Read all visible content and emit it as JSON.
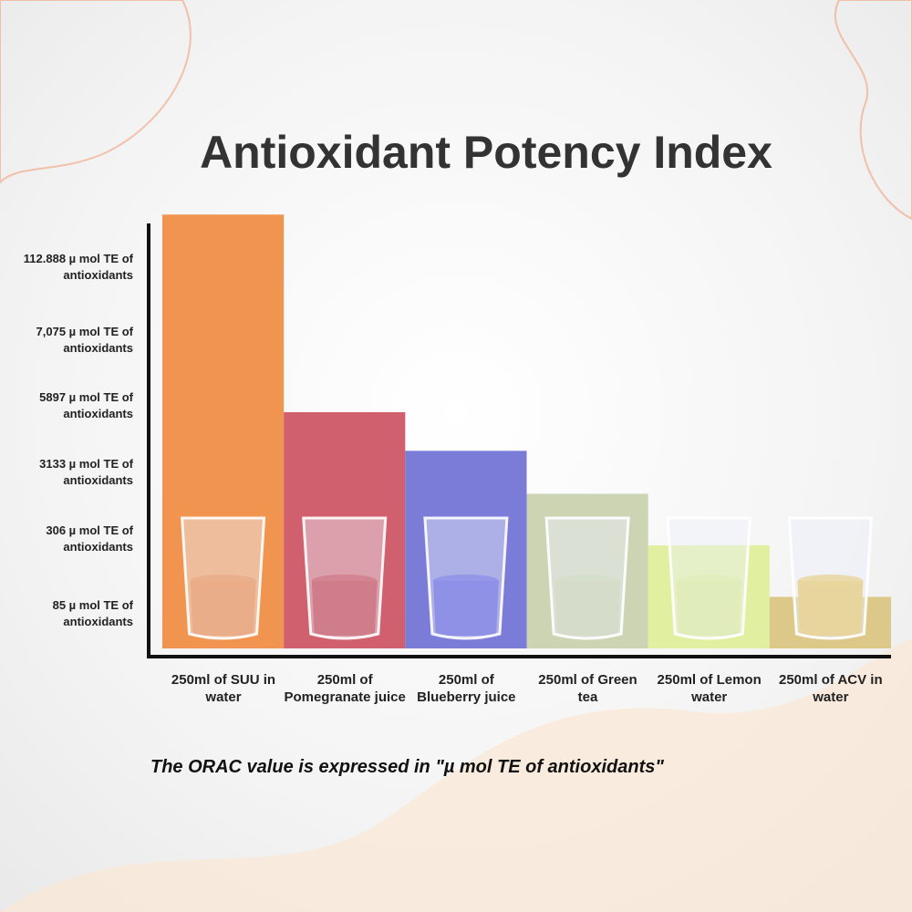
{
  "chart_data": {
    "type": "bar",
    "title": "Antioxidant Potency Index",
    "y_labels": [
      "112.888 µ mol TE of antioxidants",
      "7,075 µ mol TE of antioxidants",
      "5897 µ mol TE of antioxidants",
      "3133 µ mol TE of antioxidants",
      "306 µ mol TE of antioxidants",
      "85 µ mol TE of antioxidants"
    ],
    "categories": [
      "250ml of SUU in water",
      "250ml of Pomegranate juice",
      "250ml of Blueberry juice",
      "250ml of Green tea",
      "250ml of Lemon water",
      "250ml of ACV in water"
    ],
    "values": [
      101,
      55,
      46,
      36,
      24,
      12
    ],
    "colors": [
      "#f0944f",
      "#d0606e",
      "#7b7bd8",
      "#cdd4b4",
      "#e0f0a0",
      "#dcc98a"
    ],
    "liquid_colors": [
      "#e8772c",
      "#b81f30",
      "#4444d8",
      "#c3cda2",
      "#d8ec88",
      "#e6c050"
    ],
    "ylim": [
      0,
      100
    ],
    "note": "The ORAC value is expressed in \"µ mol TE of antioxidants\""
  }
}
